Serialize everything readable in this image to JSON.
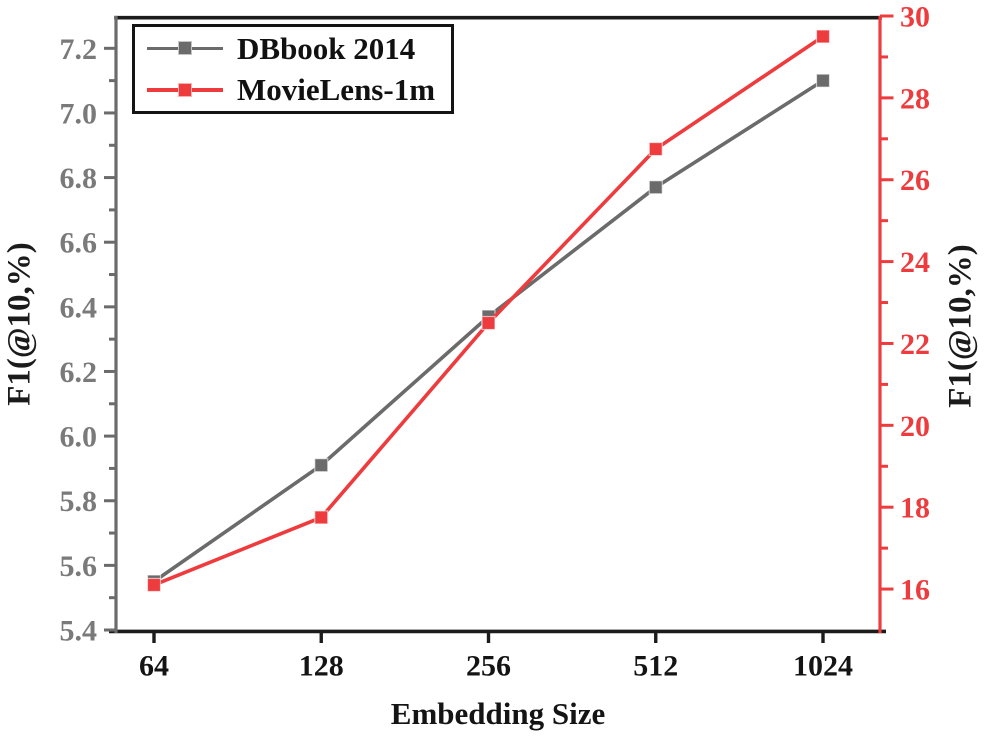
{
  "chart_data": {
    "type": "line",
    "title": "",
    "xlabel": "Embedding Size",
    "ylabel_left": "F1(@10,%)",
    "ylabel_right": "F1(@10,%)",
    "categories": [
      "64",
      "128",
      "256",
      "512",
      "1024"
    ],
    "series": [
      {
        "name": "DBbook 2014",
        "axis": "left",
        "color": "#6b6b6b",
        "marker": "square",
        "values": [
          5.55,
          5.91,
          6.37,
          6.77,
          7.1
        ]
      },
      {
        "name": "MovieLens-1m",
        "axis": "right",
        "color": "#ee3b3e",
        "marker": "square",
        "values": [
          16.1,
          17.75,
          22.5,
          26.75,
          29.5
        ]
      }
    ],
    "left_axis": {
      "range": [
        5.4,
        7.3
      ],
      "color": "#6b6b6b",
      "label_color": "#7a7a7a",
      "major_ticks": [
        5.4,
        5.6,
        5.8,
        6.0,
        6.2,
        6.4,
        6.6,
        6.8,
        7.0,
        7.2
      ],
      "major_labels": [
        "5.4",
        "5.6",
        "5.8",
        "6.0",
        "6.2",
        "6.4",
        "6.6",
        "6.8",
        "7.0",
        "7.2"
      ],
      "minor_ticks": [
        5.5,
        5.7,
        5.9,
        6.1,
        6.3,
        6.5,
        6.7,
        6.9,
        7.1
      ]
    },
    "right_axis": {
      "range": [
        15,
        30
      ],
      "color": "#ee3b3e",
      "label_color": "#ee3b3e",
      "major_ticks": [
        16,
        18,
        20,
        22,
        24,
        26,
        28,
        30
      ],
      "major_labels": [
        "16",
        "18",
        "20",
        "22",
        "24",
        "26",
        "28",
        "30"
      ],
      "minor_ticks": [
        17,
        19,
        21,
        23,
        25,
        27,
        29
      ]
    },
    "x_axis": {
      "color": "#1c1c1c",
      "label_color": "#141414"
    },
    "legend_position": "top-left",
    "grid": false
  }
}
